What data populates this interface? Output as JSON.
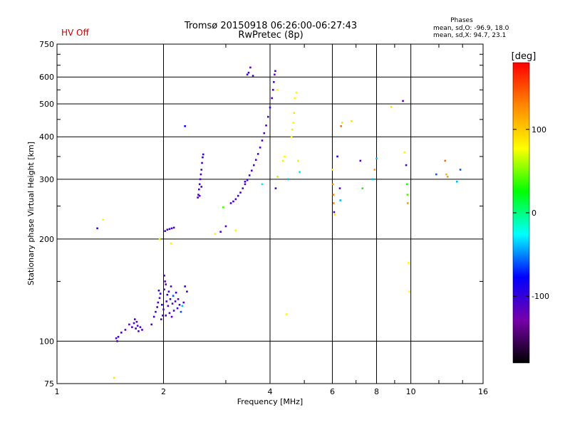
{
  "header": {
    "status": "HV Off",
    "status_color": "#cc0000",
    "title_line1": "Tromsø 20150918 06:26:00-06:27:43",
    "title_line2": "RwPretec (8p)",
    "stats_heading": "Phases",
    "stats_o": "mean, sd,O: -96.9, 18.0",
    "stats_x": "mean, sd,X:  94.7, 23.1"
  },
  "chart_data": {
    "type": "scatter",
    "xlabel": "Frequency [MHz]",
    "ylabel": "Stationary phase Virtual Height [km]",
    "x_scale": "log",
    "y_scale": "log",
    "xlim": [
      1,
      16
    ],
    "ylim": [
      75,
      750
    ],
    "x_ticks": [
      1,
      2,
      4,
      6,
      8,
      10,
      16
    ],
    "x_tick_labels": [
      "1",
      "2",
      "4",
      "6",
      "8",
      "10",
      "16"
    ],
    "x_gridlines": [
      2,
      4,
      6,
      8,
      10
    ],
    "y_ticks": [
      75,
      100,
      200,
      300,
      400,
      500,
      600,
      750
    ],
    "y_tick_labels": [
      "75",
      "100",
      "200",
      "300",
      "400",
      "500",
      "600",
      "750"
    ],
    "y_gridlines": [
      100,
      200,
      300,
      400,
      500,
      600
    ],
    "grid": true,
    "colorbar": {
      "label": "[deg]",
      "range": [
        -180,
        180
      ],
      "ticks": [
        100,
        0,
        -100
      ],
      "tick_labels": [
        "100",
        "0",
        "-100"
      ],
      "colors": [
        "#000000",
        "#7700aa",
        "#0000ff",
        "#00ffff",
        "#00ff00",
        "#ffff00",
        "#ff8800",
        "#ff0000"
      ]
    },
    "points": [
      [
        1.3,
        215,
        -100
      ],
      [
        1.47,
        102,
        -110
      ],
      [
        1.48,
        100,
        -105
      ],
      [
        1.49,
        103,
        -108
      ],
      [
        1.52,
        106,
        -110
      ],
      [
        1.56,
        108,
        -112
      ],
      [
        1.6,
        112,
        -115
      ],
      [
        1.63,
        110,
        -112
      ],
      [
        1.65,
        113,
        -105
      ],
      [
        1.67,
        109,
        -100
      ],
      [
        1.69,
        111,
        -110
      ],
      [
        1.7,
        107,
        -112
      ],
      [
        1.72,
        110,
        -108
      ],
      [
        1.74,
        108,
        -105
      ],
      [
        1.68,
        114,
        -120
      ],
      [
        1.66,
        116,
        -110
      ],
      [
        1.85,
        112,
        -110
      ],
      [
        1.88,
        118,
        -100
      ],
      [
        1.9,
        122,
        -105
      ],
      [
        1.92,
        126,
        -115
      ],
      [
        1.93,
        130,
        -110
      ],
      [
        1.95,
        134,
        -120
      ],
      [
        1.96,
        138,
        -100
      ],
      [
        1.98,
        128,
        -90
      ],
      [
        2.0,
        124,
        -115
      ],
      [
        2.01,
        142,
        -120
      ],
      [
        2.02,
        150,
        -118
      ],
      [
        2.03,
        119,
        -105
      ],
      [
        2.04,
        131,
        -110
      ],
      [
        2.05,
        137,
        -95
      ],
      [
        2.06,
        127,
        -108
      ],
      [
        2.07,
        140,
        -112
      ],
      [
        2.08,
        121,
        -110
      ],
      [
        2.09,
        133,
        -100
      ],
      [
        2.1,
        145,
        -115
      ],
      [
        2.12,
        129,
        -118
      ],
      [
        2.13,
        136,
        -60
      ],
      [
        2.14,
        123,
        -110
      ],
      [
        2.16,
        131,
        -105
      ],
      [
        2.17,
        139,
        -95
      ],
      [
        2.19,
        125,
        -110
      ],
      [
        2.2,
        133,
        -112
      ],
      [
        2.22,
        128,
        -108
      ],
      [
        2.24,
        122,
        -60
      ],
      [
        2.26,
        127,
        -40
      ],
      [
        2.28,
        130,
        -110
      ],
      [
        2.3,
        145,
        -100
      ],
      [
        2.33,
        140,
        -110
      ],
      [
        1.97,
        116,
        -110
      ],
      [
        1.99,
        119,
        -102
      ],
      [
        2.01,
        156,
        -110
      ],
      [
        2.03,
        147,
        -120
      ],
      [
        1.94,
        141,
        -100
      ],
      [
        2.11,
        118,
        -110
      ],
      [
        2.02,
        211,
        -110
      ],
      [
        2.05,
        213,
        -100
      ],
      [
        2.08,
        214,
        -105
      ],
      [
        2.11,
        215,
        -110
      ],
      [
        2.14,
        216,
        -108
      ],
      [
        2.3,
        430,
        -80
      ],
      [
        2.5,
        265,
        -110
      ],
      [
        2.51,
        270,
        -105
      ],
      [
        2.52,
        280,
        -110
      ],
      [
        2.53,
        290,
        -108
      ],
      [
        2.54,
        300,
        -112
      ],
      [
        2.55,
        310,
        -105
      ],
      [
        2.56,
        320,
        -110
      ],
      [
        2.57,
        335,
        -110
      ],
      [
        2.58,
        348,
        -100
      ],
      [
        2.59,
        355,
        -105
      ],
      [
        2.53,
        268,
        -112
      ],
      [
        2.56,
        285,
        -108
      ],
      [
        2.9,
        210,
        -110
      ],
      [
        2.95,
        248,
        40
      ],
      [
        3.0,
        218,
        -110
      ],
      [
        3.1,
        255,
        -105
      ],
      [
        3.15,
        258,
        -110
      ],
      [
        3.2,
        262,
        -108
      ],
      [
        3.25,
        268,
        -105
      ],
      [
        3.3,
        274,
        -110
      ],
      [
        3.35,
        282,
        -112
      ],
      [
        3.4,
        290,
        -110
      ],
      [
        3.45,
        298,
        -105
      ],
      [
        3.5,
        308,
        -110
      ],
      [
        3.55,
        318,
        -108
      ],
      [
        3.6,
        330,
        -112
      ],
      [
        3.65,
        342,
        -110
      ],
      [
        3.7,
        356,
        -105
      ],
      [
        3.75,
        372,
        -110
      ],
      [
        3.8,
        390,
        -108
      ],
      [
        3.85,
        410,
        -110
      ],
      [
        3.9,
        432,
        -112
      ],
      [
        3.95,
        458,
        -110
      ],
      [
        4.0,
        488,
        -105
      ],
      [
        4.05,
        520,
        -110
      ],
      [
        4.08,
        550,
        -108
      ],
      [
        4.1,
        580,
        -110
      ],
      [
        4.12,
        610,
        -112
      ],
      [
        4.14,
        625,
        -108
      ],
      [
        3.45,
        610,
        -110
      ],
      [
        3.48,
        618,
        -105
      ],
      [
        3.52,
        640,
        -120
      ],
      [
        3.58,
        605,
        -110
      ],
      [
        3.4,
        295,
        -100
      ],
      [
        3.8,
        290,
        -30
      ],
      [
        4.15,
        282,
        -110
      ],
      [
        4.2,
        305,
        60
      ],
      [
        4.2,
        550,
        80
      ],
      [
        4.35,
        340,
        70
      ],
      [
        4.4,
        350,
        80
      ],
      [
        4.45,
        120,
        80
      ],
      [
        4.5,
        300,
        -40
      ],
      [
        4.6,
        400,
        80
      ],
      [
        4.62,
        420,
        85
      ],
      [
        4.65,
        440,
        80
      ],
      [
        4.68,
        470,
        90
      ],
      [
        4.7,
        520,
        80
      ],
      [
        4.75,
        540,
        75
      ],
      [
        4.8,
        340,
        70
      ],
      [
        4.85,
        315,
        -30
      ],
      [
        6.0,
        320,
        80
      ],
      [
        6.02,
        290,
        130
      ],
      [
        6.04,
        270,
        130
      ],
      [
        6.05,
        255,
        130
      ],
      [
        6.07,
        240,
        -110
      ],
      [
        6.1,
        236,
        90
      ],
      [
        6.2,
        350,
        -100
      ],
      [
        6.3,
        282,
        -110
      ],
      [
        6.32,
        260,
        -40
      ],
      [
        6.35,
        430,
        140
      ],
      [
        6.4,
        440,
        90
      ],
      [
        6.8,
        445,
        90
      ],
      [
        7.2,
        340,
        -110
      ],
      [
        7.3,
        282,
        30
      ],
      [
        7.8,
        300,
        -40
      ],
      [
        7.9,
        320,
        120
      ],
      [
        8.0,
        345,
        -40
      ],
      [
        8.8,
        490,
        90
      ],
      [
        9.5,
        510,
        -110
      ],
      [
        9.6,
        360,
        80
      ],
      [
        9.7,
        330,
        -110
      ],
      [
        9.75,
        290,
        30
      ],
      [
        9.78,
        270,
        40
      ],
      [
        9.8,
        255,
        120
      ],
      [
        9.85,
        170,
        80
      ],
      [
        9.9,
        140,
        80
      ],
      [
        11.8,
        310,
        -60
      ],
      [
        12.5,
        340,
        140
      ],
      [
        12.6,
        310,
        110
      ],
      [
        12.7,
        305,
        120
      ],
      [
        13.5,
        295,
        -40
      ],
      [
        13.8,
        320,
        -60
      ],
      [
        1.35,
        228,
        80
      ],
      [
        1.45,
        78,
        90
      ],
      [
        1.95,
        200,
        70
      ],
      [
        2.1,
        194,
        80
      ],
      [
        2.8,
        207,
        80
      ],
      [
        3.2,
        212,
        80
      ]
    ]
  }
}
